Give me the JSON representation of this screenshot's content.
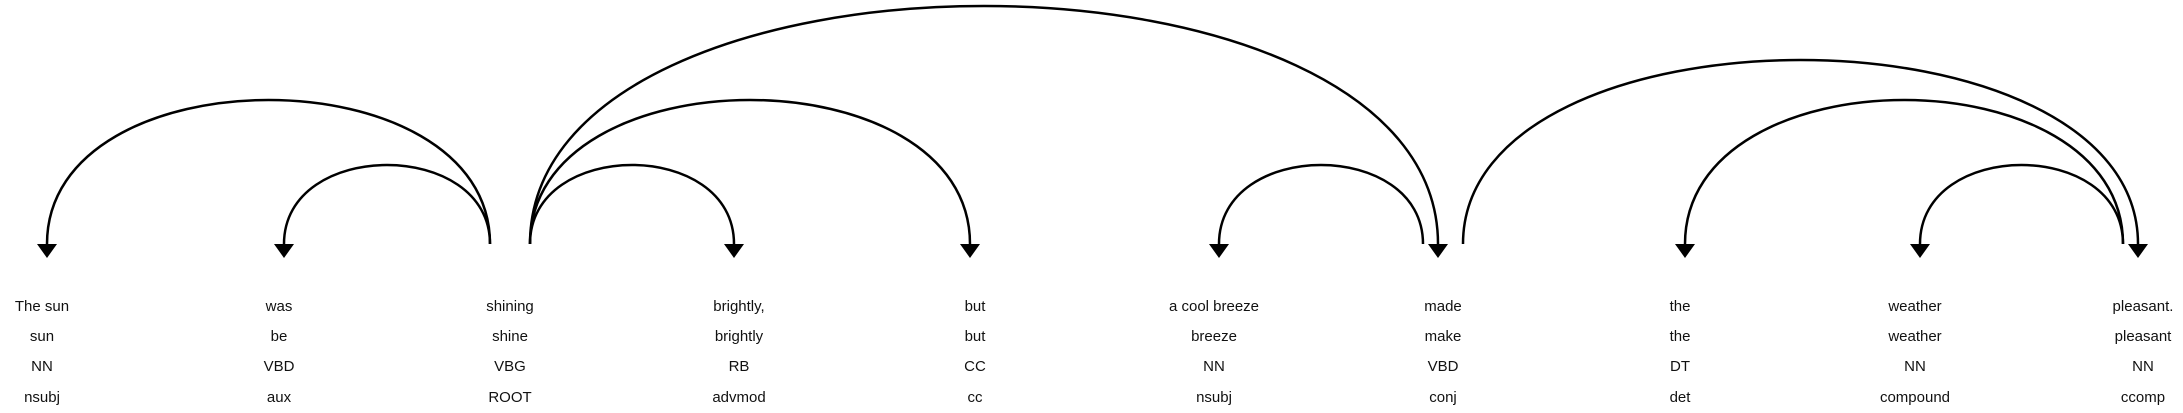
{
  "tokens": [
    {
      "text": "The sun",
      "lemma": "sun",
      "pos": "NN",
      "dep": "nsubj"
    },
    {
      "text": "was",
      "lemma": "be",
      "pos": "VBD",
      "dep": "aux"
    },
    {
      "text": "shining",
      "lemma": "shine",
      "pos": "VBG",
      "dep": "ROOT"
    },
    {
      "text": "brightly,",
      "lemma": "brightly",
      "pos": "RB",
      "dep": "advmod"
    },
    {
      "text": "but",
      "lemma": "but",
      "pos": "CC",
      "dep": "cc"
    },
    {
      "text": "a cool breeze",
      "lemma": "breeze",
      "pos": "NN",
      "dep": "nsubj"
    },
    {
      "text": "made",
      "lemma": "make",
      "pos": "VBD",
      "dep": "conj"
    },
    {
      "text": "the",
      "lemma": "the",
      "pos": "DT",
      "dep": "det"
    },
    {
      "text": "weather",
      "lemma": "weather",
      "pos": "NN",
      "dep": "compound"
    },
    {
      "text": "pleasant.",
      "lemma": "pleasant",
      "pos": "NN",
      "dep": "ccomp"
    }
  ],
  "arcs": [
    {
      "from": 2,
      "to": 0
    },
    {
      "from": 2,
      "to": 1
    },
    {
      "from": 2,
      "to": 3
    },
    {
      "from": 2,
      "to": 4
    },
    {
      "from": 2,
      "to": 6
    },
    {
      "from": 6,
      "to": 5
    },
    {
      "from": 6,
      "to": 9
    },
    {
      "from": 9,
      "to": 7
    },
    {
      "from": 9,
      "to": 8
    }
  ]
}
